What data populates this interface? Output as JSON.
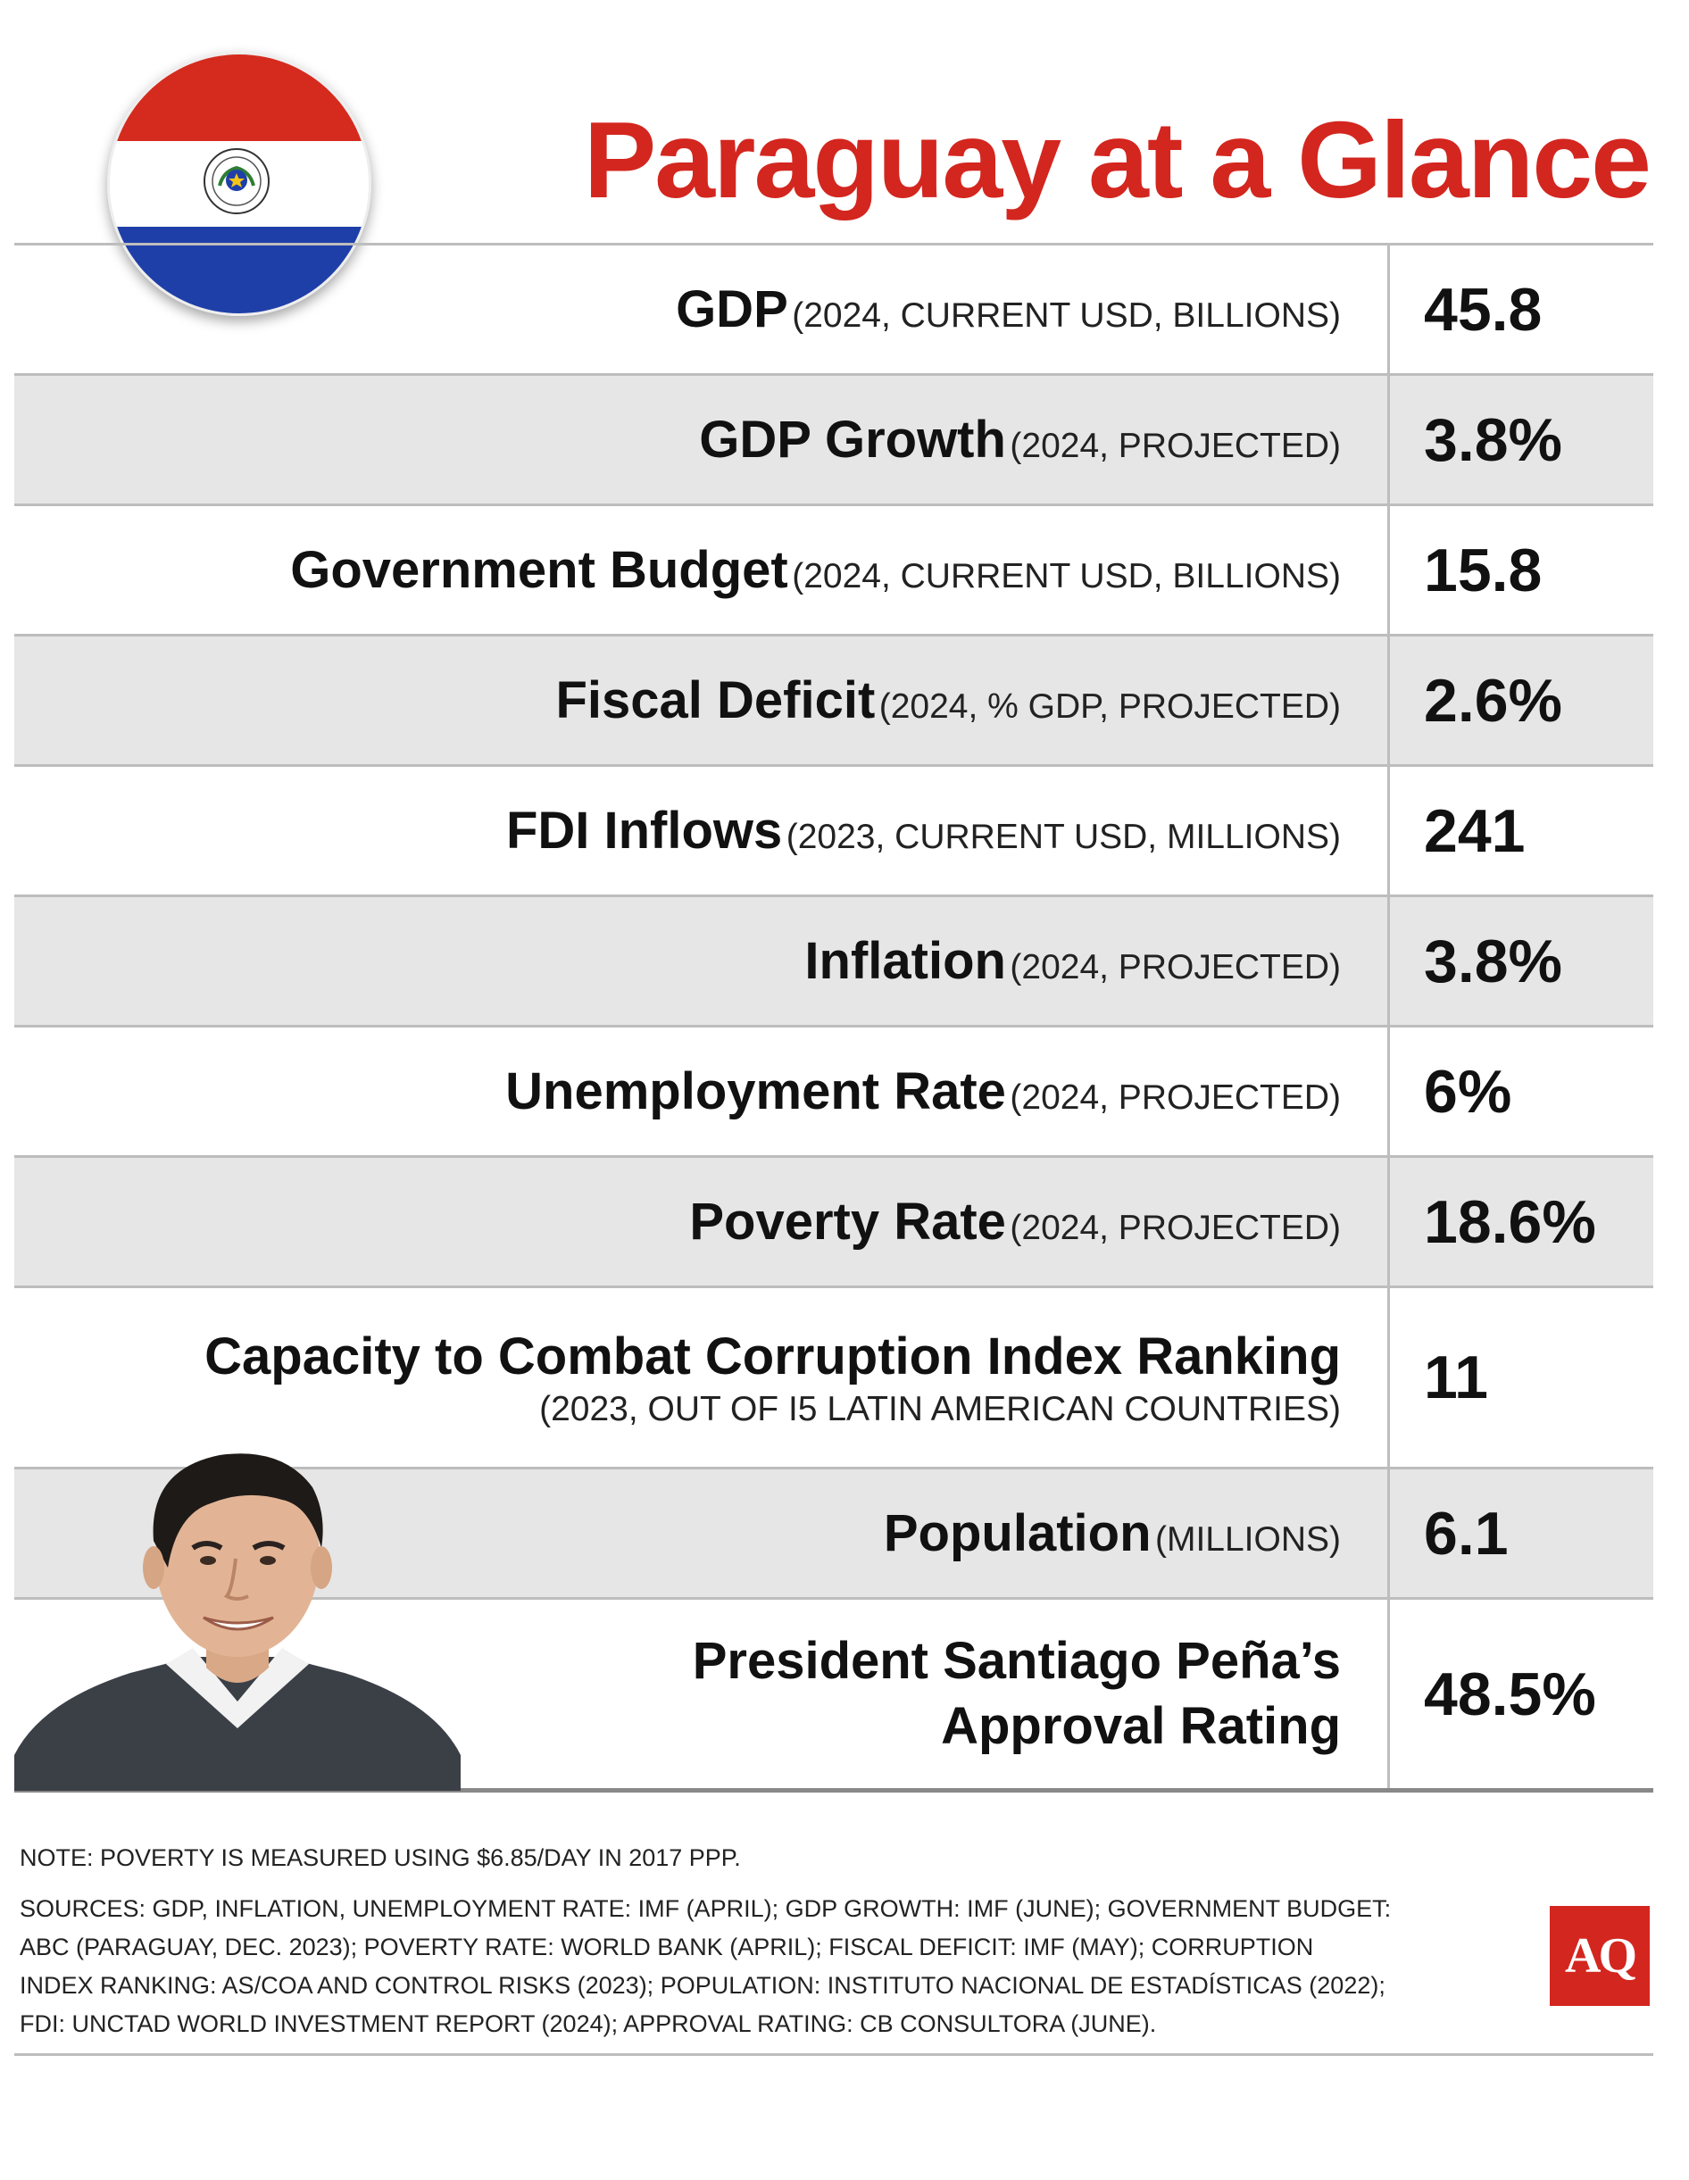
{
  "title": "Paraguay at a Glance",
  "rows": [
    {
      "label": "GDP",
      "detail": "(2024, CURRENT USD, BILLIONS)",
      "value": "45.8"
    },
    {
      "label": "GDP Growth",
      "detail": "(2024, PROJECTED)",
      "value": "3.8%"
    },
    {
      "label": "Government Budget",
      "detail": "(2024, CURRENT USD, BILLIONS)",
      "value": "15.8"
    },
    {
      "label": "Fiscal Deficit",
      "detail": "(2024, % GDP, PROJECTED)",
      "value": "2.6%"
    },
    {
      "label": "FDI Inflows",
      "detail": "(2023, CURRENT USD, MILLIONS)",
      "value": "241"
    },
    {
      "label": "Inflation",
      "detail": "(2024, PROJECTED)",
      "value": "3.8%"
    },
    {
      "label": "Unemployment Rate",
      "detail": "(2024, PROJECTED)",
      "value": "6%"
    },
    {
      "label": "Poverty Rate",
      "detail": "(2024, PROJECTED)",
      "value": "18.6%"
    },
    {
      "label": "Capacity to Combat Corruption Index Ranking",
      "detail": "(2023, OUT OF I5 LATIN AMERICAN COUNTRIES)",
      "value": "11"
    },
    {
      "label": "Population",
      "detail": "(MILLIONS)",
      "value": "6.1"
    },
    {
      "label_line1": "President Santiago Peña’s",
      "label_line2": "Approval Rating",
      "value": "48.5%"
    }
  ],
  "note": "NOTE: POVERTY IS MEASURED USING $6.85/DAY IN 2017 PPP.",
  "sources": [
    "SOURCES: GDP, INFLATION, UNEMPLOYMENT RATE: IMF (APRIL); GDP GROWTH: IMF (JUNE); GOVERNMENT BUDGET:",
    "ABC (PARAGUAY, DEC. 2023); POVERTY RATE: WORLD BANK (APRIL);  FISCAL DEFICIT: IMF (MAY); CORRUPTION",
    "INDEX RANKING: AS/COA AND CONTROL RISKS (2023); POPULATION: INSTITUTO NACIONAL DE ESTADÍSTICAS (2022);",
    "FDI: UNCTAD WORLD INVESTMENT REPORT (2024); APPROVAL RATING: CB CONSULTORA (JUNE)."
  ],
  "logo": "AQ",
  "icons": {
    "flag": "paraguay-flag-icon",
    "portrait": "president-portrait"
  },
  "colors": {
    "accent": "#d3261f",
    "flag_red": "#d52b1e",
    "flag_blue": "#1f3fa8",
    "row_alt": "#e6e6e6"
  }
}
